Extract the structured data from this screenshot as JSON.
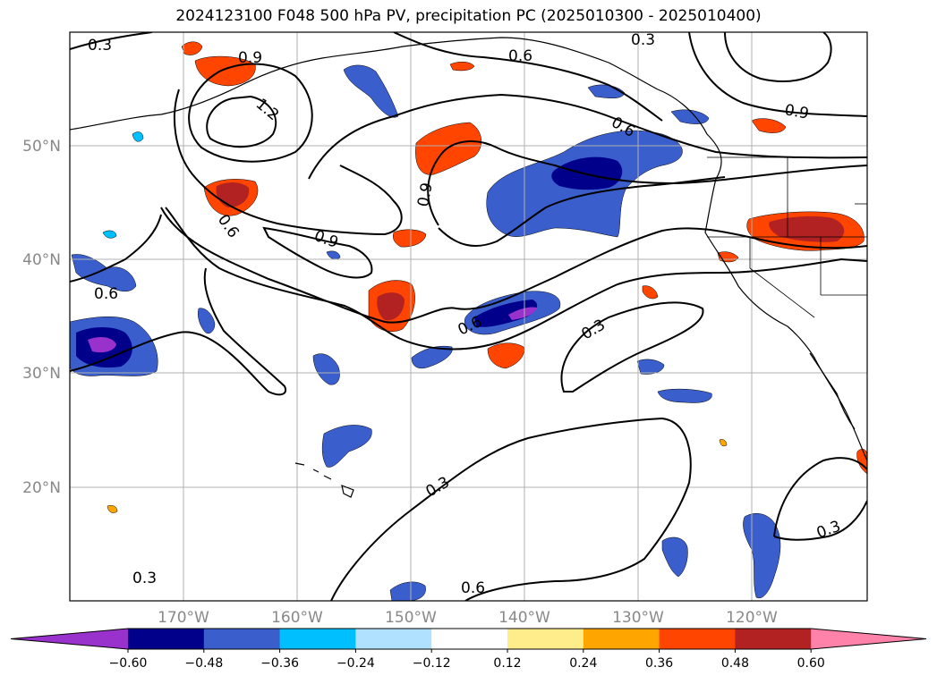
{
  "title": "2024123100 F048 500 hPa PV, precipitation PC (2025010300 - 2025010400)",
  "lat_ticks": [
    "50°N",
    "40°N",
    "30°N",
    "20°N"
  ],
  "lon_ticks": [
    "170°W",
    "160°W",
    "150°W",
    "140°W",
    "130°W",
    "120°W"
  ],
  "colorbar": {
    "colors": [
      "#9932CC",
      "#00008B",
      "#3A5FCD",
      "#00BFFF",
      "#B0E2FF",
      "#FFFFFF",
      "#FFEC8B",
      "#FFA500",
      "#FF4500",
      "#B22222",
      "#FF82AB"
    ],
    "ticks": [
      "−0.60",
      "−0.48",
      "−0.36",
      "−0.24",
      "−0.12",
      "0.12",
      "0.24",
      "0.36",
      "0.48",
      "0.60"
    ]
  },
  "contour_labels": [
    "0.3",
    "0.9",
    "1.2",
    "0.6",
    "0.6",
    "0.3",
    "0.9",
    "0.6",
    "0.9",
    "0.6",
    "0.9",
    "0.6",
    "0.3",
    "0.3",
    "0.6",
    "0.3",
    "0.3"
  ]
}
